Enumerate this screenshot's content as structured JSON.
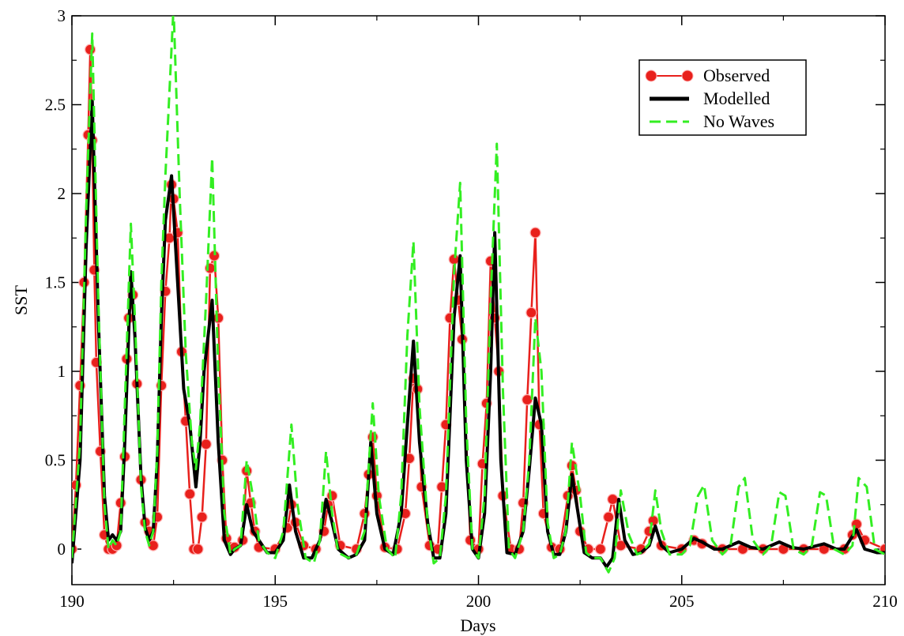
{
  "chart_data": {
    "type": "line",
    "title": "",
    "xlabel": "Days",
    "ylabel": "SST",
    "xlim": [
      190,
      210
    ],
    "ylim": [
      -0.2,
      3
    ],
    "xticks": [
      190,
      195,
      200,
      205,
      210
    ],
    "xtick_labels": [
      "190",
      "195",
      "200",
      "205",
      "210"
    ],
    "yticks": [
      0,
      0.5,
      1,
      1.5,
      2,
      2.5,
      3
    ],
    "ytick_labels": [
      "0",
      "0.5",
      "1",
      "1.5",
      "2",
      "2.5",
      "3"
    ],
    "grid": false,
    "legend_position": "top-right",
    "series": [
      {
        "name": "Observed",
        "color": "#e8201c",
        "marker": "circle",
        "x": [
          190.0,
          190.1,
          190.2,
          190.3,
          190.4,
          190.45,
          190.5,
          190.55,
          190.6,
          190.7,
          190.8,
          190.9,
          191.0,
          191.1,
          191.2,
          191.3,
          191.35,
          191.4,
          191.5,
          191.6,
          191.7,
          191.8,
          191.9,
          192.0,
          192.1,
          192.2,
          192.3,
          192.4,
          192.45,
          192.5,
          192.6,
          192.7,
          192.8,
          192.9,
          193.0,
          193.1,
          193.2,
          193.3,
          193.4,
          193.5,
          193.6,
          193.7,
          193.8,
          194.0,
          194.2,
          194.3,
          194.4,
          194.5,
          194.6,
          195.0,
          195.3,
          195.4,
          195.5,
          195.7,
          196.0,
          196.2,
          196.3,
          196.4,
          196.6,
          197.0,
          197.2,
          197.3,
          197.4,
          197.5,
          197.7,
          198.0,
          198.2,
          198.3,
          198.4,
          198.5,
          198.6,
          198.8,
          199.0,
          199.1,
          199.2,
          199.3,
          199.4,
          199.5,
          199.6,
          199.8,
          200.0,
          200.1,
          200.2,
          200.3,
          200.4,
          200.5,
          200.6,
          200.8,
          201.0,
          201.1,
          201.2,
          201.3,
          201.4,
          201.5,
          201.6,
          201.8,
          202.0,
          202.2,
          202.3,
          202.4,
          202.5,
          202.7,
          203.0,
          203.2,
          203.3,
          203.5,
          204.0,
          204.2,
          204.3,
          204.5,
          205.0,
          205.3,
          205.5,
          206.0,
          206.5,
          207.0,
          207.5,
          208.0,
          208.5,
          209.0,
          209.2,
          209.3,
          209.5,
          210.0
        ],
        "y": [
          0.0,
          0.36,
          0.92,
          1.5,
          2.33,
          2.81,
          2.3,
          1.57,
          1.05,
          0.55,
          0.08,
          0.0,
          0.0,
          0.02,
          0.26,
          0.52,
          1.07,
          1.3,
          1.43,
          0.93,
          0.39,
          0.15,
          0.1,
          0.02,
          0.18,
          0.92,
          1.45,
          1.75,
          2.05,
          1.97,
          1.78,
          1.11,
          0.72,
          0.31,
          0.0,
          0.0,
          0.18,
          0.59,
          1.58,
          1.65,
          1.3,
          0.5,
          0.06,
          0.01,
          0.05,
          0.44,
          0.26,
          0.1,
          0.01,
          0.0,
          0.12,
          0.25,
          0.15,
          0.02,
          0.0,
          0.1,
          0.25,
          0.3,
          0.02,
          0.0,
          0.2,
          0.42,
          0.63,
          0.3,
          0.01,
          0.0,
          0.2,
          0.51,
          0.96,
          0.9,
          0.35,
          0.02,
          0.0,
          0.35,
          0.7,
          1.3,
          1.63,
          1.4,
          1.18,
          0.05,
          0.0,
          0.48,
          0.82,
          1.62,
          1.3,
          1.0,
          0.3,
          0.0,
          0.0,
          0.26,
          0.84,
          1.33,
          1.78,
          0.7,
          0.2,
          0.01,
          0.0,
          0.3,
          0.47,
          0.33,
          0.1,
          0.0,
          0.0,
          0.18,
          0.28,
          0.02,
          0.0,
          0.1,
          0.16,
          0.02,
          0.0,
          0.05,
          0.03,
          0.0,
          0.0,
          0.0,
          0.0,
          0.0,
          0.0,
          0.0,
          0.08,
          0.14,
          0.05,
          0.0
        ]
      },
      {
        "name": "Modelled",
        "color": "#000000",
        "x": [
          190.0,
          190.2,
          190.35,
          190.5,
          190.65,
          190.8,
          190.9,
          191.0,
          191.1,
          191.2,
          191.3,
          191.45,
          191.55,
          191.7,
          191.8,
          191.9,
          192.0,
          192.1,
          192.2,
          192.3,
          192.45,
          192.6,
          192.75,
          192.9,
          193.05,
          193.15,
          193.25,
          193.45,
          193.6,
          193.75,
          193.9,
          194.0,
          194.15,
          194.3,
          194.45,
          194.6,
          194.8,
          195.0,
          195.2,
          195.35,
          195.5,
          195.7,
          195.9,
          196.1,
          196.25,
          196.4,
          196.55,
          196.8,
          197.0,
          197.2,
          197.35,
          197.5,
          197.7,
          197.9,
          198.1,
          198.25,
          198.4,
          198.55,
          198.75,
          198.9,
          199.05,
          199.2,
          199.4,
          199.55,
          199.7,
          199.85,
          200.0,
          200.15,
          200.3,
          200.4,
          200.55,
          200.7,
          200.9,
          201.1,
          201.25,
          201.4,
          201.55,
          201.7,
          201.85,
          202.0,
          202.15,
          202.3,
          202.45,
          202.6,
          202.8,
          203.0,
          203.15,
          203.3,
          203.45,
          203.6,
          203.8,
          204.0,
          204.2,
          204.35,
          204.5,
          204.7,
          205.0,
          205.3,
          205.5,
          205.8,
          206.0,
          206.4,
          206.7,
          207.0,
          207.4,
          207.7,
          208.0,
          208.5,
          208.8,
          209.0,
          209.3,
          209.5,
          209.8,
          210.0
        ],
        "y": [
          -0.08,
          0.5,
          1.7,
          2.52,
          1.3,
          0.3,
          0.05,
          0.08,
          0.05,
          0.1,
          0.6,
          1.56,
          1.2,
          0.4,
          0.12,
          0.05,
          0.1,
          0.5,
          1.3,
          1.85,
          2.1,
          1.5,
          0.9,
          0.7,
          0.35,
          0.6,
          1.0,
          1.4,
          0.6,
          0.05,
          -0.03,
          0.0,
          0.02,
          0.25,
          0.1,
          0.05,
          -0.02,
          -0.02,
          0.05,
          0.36,
          0.1,
          -0.05,
          -0.05,
          0.05,
          0.28,
          0.15,
          0.0,
          -0.05,
          -0.03,
          0.05,
          0.6,
          0.2,
          0.0,
          -0.03,
          0.2,
          0.7,
          1.17,
          0.6,
          0.15,
          -0.05,
          -0.05,
          0.2,
          1.3,
          1.65,
          0.5,
          0.0,
          -0.05,
          0.2,
          1.0,
          1.78,
          0.5,
          -0.02,
          -0.03,
          0.1,
          0.45,
          0.85,
          0.7,
          0.1,
          -0.03,
          -0.03,
          0.1,
          0.42,
          0.2,
          -0.02,
          -0.05,
          -0.05,
          -0.1,
          -0.05,
          0.28,
          0.05,
          -0.03,
          -0.02,
          0.02,
          0.13,
          0.02,
          -0.02,
          0.0,
          0.06,
          0.04,
          0.0,
          0.0,
          0.04,
          0.01,
          0.0,
          0.04,
          0.01,
          0.0,
          0.03,
          0.0,
          0.0,
          0.11,
          0.0,
          -0.02,
          -0.02
        ]
      },
      {
        "name": "No Waves",
        "color": "#33ee22",
        "dash": "dashed",
        "x": [
          190.0,
          190.2,
          190.35,
          190.5,
          190.65,
          190.8,
          190.9,
          191.0,
          191.1,
          191.2,
          191.3,
          191.45,
          191.55,
          191.7,
          191.8,
          191.9,
          192.0,
          192.1,
          192.2,
          192.3,
          192.5,
          192.65,
          192.8,
          192.95,
          193.05,
          193.15,
          193.3,
          193.45,
          193.6,
          193.75,
          193.9,
          194.0,
          194.15,
          194.3,
          194.45,
          194.6,
          194.8,
          195.0,
          195.2,
          195.4,
          195.55,
          195.75,
          195.95,
          196.1,
          196.25,
          196.4,
          196.55,
          196.8,
          197.0,
          197.2,
          197.4,
          197.55,
          197.75,
          197.95,
          198.1,
          198.25,
          198.4,
          198.55,
          198.75,
          198.9,
          199.05,
          199.2,
          199.4,
          199.55,
          199.7,
          199.85,
          200.0,
          200.15,
          200.3,
          200.45,
          200.6,
          200.75,
          200.9,
          201.1,
          201.25,
          201.4,
          201.55,
          201.7,
          201.85,
          202.0,
          202.15,
          202.3,
          202.5,
          202.65,
          202.8,
          203.0,
          203.2,
          203.35,
          203.5,
          203.7,
          203.9,
          204.0,
          204.2,
          204.35,
          204.5,
          204.7,
          205.0,
          205.2,
          205.4,
          205.55,
          205.75,
          206.0,
          206.2,
          206.4,
          206.55,
          206.75,
          207.0,
          207.2,
          207.4,
          207.55,
          207.75,
          208.0,
          208.2,
          208.4,
          208.55,
          208.75,
          209.0,
          209.2,
          209.35,
          209.55,
          209.75,
          210.0
        ],
        "y": [
          -0.05,
          0.6,
          1.9,
          2.9,
          1.4,
          0.25,
          0.0,
          0.05,
          0.02,
          0.1,
          0.8,
          1.83,
          1.3,
          0.35,
          0.1,
          0.02,
          0.1,
          0.55,
          1.5,
          2.1,
          3.05,
          2.0,
          1.1,
          0.6,
          0.45,
          0.7,
          1.4,
          2.2,
          1.0,
          0.2,
          -0.03,
          0.0,
          0.02,
          0.5,
          0.3,
          0.05,
          -0.02,
          -0.05,
          0.1,
          0.7,
          0.25,
          -0.05,
          -0.08,
          0.05,
          0.55,
          0.2,
          -0.02,
          -0.05,
          -0.03,
          0.1,
          0.82,
          0.3,
          0.0,
          -0.05,
          0.3,
          1.2,
          1.73,
          0.8,
          0.15,
          -0.08,
          -0.05,
          0.3,
          1.55,
          2.06,
          0.7,
          0.0,
          -0.05,
          0.3,
          1.4,
          2.28,
          0.9,
          0.0,
          -0.05,
          0.1,
          0.5,
          1.3,
          1.0,
          0.15,
          -0.05,
          -0.03,
          0.1,
          0.6,
          0.3,
          -0.02,
          -0.05,
          -0.05,
          -0.13,
          -0.05,
          0.33,
          0.08,
          -0.03,
          -0.02,
          0.03,
          0.33,
          0.1,
          -0.03,
          -0.03,
          0.02,
          0.3,
          0.36,
          0.05,
          -0.03,
          0.02,
          0.35,
          0.4,
          0.05,
          -0.03,
          0.02,
          0.32,
          0.3,
          0.0,
          -0.03,
          0.02,
          0.32,
          0.3,
          0.0,
          -0.03,
          0.02,
          0.4,
          0.35,
          0.0,
          -0.03
        ]
      }
    ]
  }
}
